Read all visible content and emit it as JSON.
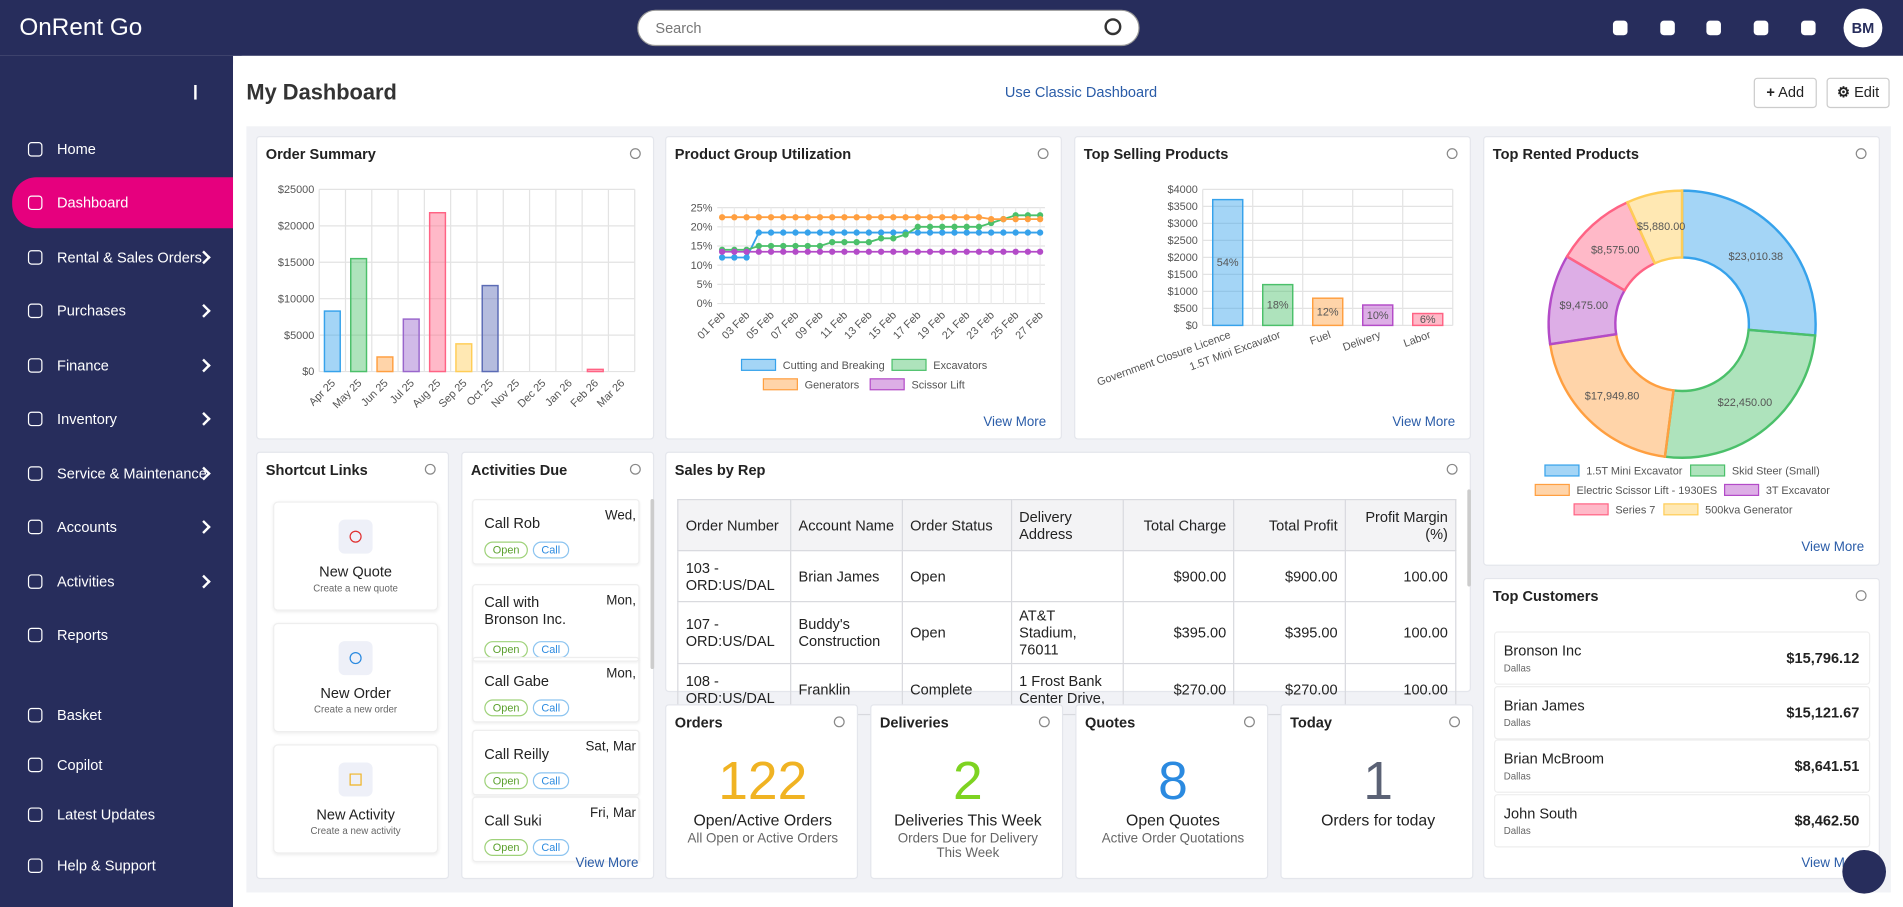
{
  "header": {
    "logo": "OnRent Go",
    "search_placeholder": "Search",
    "avatar": "BM"
  },
  "sidebar": {
    "items": [
      "Home",
      "Dashboard",
      "Rental & Sales Orders",
      "Purchases",
      "Finance",
      "Inventory",
      "Service & Maintenance",
      "Accounts",
      "Activities",
      "Reports",
      "Basket",
      "Copilot",
      "Latest Updates",
      "Help & Support"
    ],
    "active": 1,
    "expandable": [
      2,
      3,
      4,
      5,
      6,
      7,
      8
    ]
  },
  "page": {
    "title": "My Dashboard",
    "classic_link": "Use Classic Dashboard",
    "add_button": "Add",
    "edit_button": "Edit",
    "view_more": "View More"
  },
  "chart_data": [
    {
      "type": "bar",
      "title": "Order Summary",
      "categories": [
        "Apr 25",
        "May 25",
        "Jun 25",
        "Jul 25",
        "Aug 25",
        "Sep 25",
        "Oct 25",
        "Nov 25",
        "Dec 25",
        "Jan 26",
        "Feb 26",
        "Mar 26"
      ],
      "values": [
        8300,
        15500,
        2000,
        7200,
        21800,
        3800,
        11800,
        0,
        0,
        0,
        300,
        0
      ],
      "colors": [
        "#36a2eb",
        "#4bc06a",
        "#ff9f40",
        "#9966cc",
        "#ff6384",
        "#ffcd56",
        "#5b6bb5",
        "#36a2eb",
        "#4bc06a",
        "#ff9f40",
        "#ff6384",
        "#ffcd56"
      ],
      "ylim": [
        0,
        25000
      ],
      "yticks": [
        {
          "value": 0,
          "label": "$0"
        },
        {
          "value": 5000,
          "label": "$5000"
        },
        {
          "value": 10000,
          "label": "$10000"
        },
        {
          "value": 15000,
          "label": "$15000"
        },
        {
          "value": 20000,
          "label": "$20000"
        },
        {
          "value": 25000,
          "label": "$25000"
        }
      ],
      "grid": true
    },
    {
      "type": "line",
      "title": "Product Group Utilization",
      "categories": [
        "01 Feb",
        null,
        "03 Feb",
        null,
        "05 Feb",
        null,
        "07 Feb",
        null,
        "09 Feb",
        null,
        "11 Feb",
        null,
        "13 Feb",
        null,
        "15 Feb",
        null,
        "17 Feb",
        null,
        "19 Feb",
        null,
        "21 Feb",
        null,
        "23 Feb",
        null,
        "25 Feb",
        null,
        "27 Feb"
      ],
      "series": [
        {
          "name": "Cutting and Breaking",
          "color": "#36a2eb",
          "values": [
            12,
            12,
            12,
            18.5,
            18.5,
            18.5,
            18.5,
            18.5,
            18.5,
            18.5,
            18.5,
            18.5,
            18.5,
            18.5,
            18.5,
            18.5,
            18.5,
            18.5,
            18.5,
            18.5,
            18.5,
            18.5,
            18.5,
            18.5,
            18.5,
            18.5,
            18.5
          ]
        },
        {
          "name": "Excavators",
          "color": "#4bc06a",
          "values": [
            14,
            14,
            14,
            15,
            15,
            15,
            15,
            15,
            15,
            16,
            16,
            16,
            16,
            17,
            17,
            18,
            20,
            20,
            20,
            20,
            20,
            20,
            21,
            22,
            23,
            23,
            23
          ]
        },
        {
          "name": "Generators",
          "color": "#ff9f40",
          "values": [
            22.5,
            22.5,
            22.5,
            22.5,
            22.5,
            22.5,
            22.5,
            22.5,
            22.5,
            22.5,
            22.5,
            22.5,
            22.5,
            22.5,
            22.5,
            22.5,
            22.5,
            22.5,
            22.5,
            22.5,
            22.5,
            22.5,
            22,
            22,
            22,
            22,
            22
          ]
        },
        {
          "name": "Scissor Lift",
          "color": "#b34bc8",
          "values": [
            13.5,
            13.5,
            13.5,
            13.5,
            13.5,
            13.5,
            13.5,
            13.5,
            13.5,
            13.5,
            13.5,
            13.5,
            13.5,
            13.5,
            13.5,
            13.5,
            13.5,
            13.5,
            13.5,
            13.5,
            13.5,
            13.5,
            13.5,
            13.5,
            13.5,
            13.5,
            13.5
          ]
        }
      ],
      "ylim": [
        0,
        25
      ],
      "yticks": [
        {
          "value": 0,
          "label": "0%"
        },
        {
          "value": 5,
          "label": "5%"
        },
        {
          "value": 10,
          "label": "10%"
        },
        {
          "value": 15,
          "label": "15%"
        },
        {
          "value": 20,
          "label": "20%"
        },
        {
          "value": 25,
          "label": "25%"
        }
      ],
      "grid": true
    },
    {
      "type": "bar",
      "title": "Top Selling Products",
      "categories": [
        "Government Closure Licence",
        "1.5T Mini Excavator",
        "Fuel",
        "Delivery",
        "Labor"
      ],
      "values": [
        3700,
        1200,
        800,
        600,
        350
      ],
      "share_labels": [
        "54%",
        "18%",
        "12%",
        "10%",
        "6%"
      ],
      "colors": [
        "#36a2eb",
        "#4bc06a",
        "#ff9f40",
        "#b34bc8",
        "#ff6384"
      ],
      "ylim": [
        0,
        4000
      ],
      "yticks": [
        {
          "value": 0,
          "label": "$0"
        },
        {
          "value": 500,
          "label": "$500"
        },
        {
          "value": 1000,
          "label": "$1000"
        },
        {
          "value": 1500,
          "label": "$1500"
        },
        {
          "value": 2000,
          "label": "$2000"
        },
        {
          "value": 2500,
          "label": "$2500"
        },
        {
          "value": 3000,
          "label": "$3000"
        },
        {
          "value": 3500,
          "label": "$3500"
        },
        {
          "value": 4000,
          "label": "$4000"
        }
      ],
      "grid": true
    },
    {
      "type": "doughnut",
      "title": "Top Rented Products",
      "categories": [
        "1.5T Mini Excavator",
        "Skid Steer (Small)",
        "Electric Scissor Lift - 1930ES",
        "3T Excavator",
        "Series 7",
        "500kva Generator"
      ],
      "values": [
        23010.38,
        22450,
        17949.8,
        9475,
        8575,
        5880
      ],
      "value_labels": [
        "$23,010.38",
        "$22,450.00",
        "$17,949.80",
        "$9,475.00",
        "$8,575.00",
        "$5,880.00"
      ],
      "colors": [
        "#36a2eb",
        "#4bc06a",
        "#ff9f40",
        "#b34bc8",
        "#ff6384",
        "#ffcd56"
      ]
    }
  ],
  "shortcuts": {
    "title": "Shortcut Links",
    "items": [
      {
        "title": "New Quote",
        "subtitle": "Create a new quote"
      },
      {
        "title": "New Order",
        "subtitle": "Create a new order"
      },
      {
        "title": "New Activity",
        "subtitle": "Create a new activity"
      }
    ]
  },
  "activities": {
    "title": "Activities Due",
    "tags": [
      "Open",
      "Call"
    ],
    "items": [
      {
        "title": "Call Rob",
        "date": "Wed,"
      },
      {
        "title": "Call with Bronson Inc.",
        "date": "Mon,"
      },
      {
        "title": "Call Gabe",
        "date": "Mon,"
      },
      {
        "title": "Call Reilly",
        "date": "Sat, Mar"
      },
      {
        "title": "Call Suki",
        "date": "Fri, Mar"
      }
    ]
  },
  "sales_by_rep": {
    "title": "Sales by Rep",
    "columns": [
      "Order Number",
      "Account Name",
      "Order Status",
      "Delivery Address",
      "Total Charge",
      "Total Profit",
      "Profit Margin (%)"
    ],
    "rows": [
      [
        "103 - ORD:US/DAL",
        "Brian James",
        "Open",
        null,
        "$900.00",
        "$900.00",
        "100.00"
      ],
      [
        "107 - ORD:US/DAL",
        "Buddy's Construction",
        "Open",
        "AT&T Stadium, 76011",
        "$395.00",
        "$395.00",
        "100.00"
      ],
      [
        "108 - ORD:US/DAL",
        "Franklin",
        "Complete",
        "1 Frost Bank Center Drive,",
        "$270.00",
        "$270.00",
        "100.00"
      ]
    ]
  },
  "stats": [
    {
      "title": "Orders",
      "number": "122",
      "label": "Open/Active Orders",
      "subtitle": "All Open or Active Orders"
    },
    {
      "title": "Deliveries",
      "number": "2",
      "label": "Deliveries This Week",
      "subtitle": "Orders Due for Delivery This Week"
    },
    {
      "title": "Quotes",
      "number": "8",
      "label": "Open Quotes",
      "subtitle": "Active Order Quotations"
    },
    {
      "title": "Today",
      "number": "1",
      "label": "Orders for today"
    }
  ],
  "top_customers": {
    "title": "Top Customers",
    "rows": [
      {
        "name": "Bronson Inc",
        "city": "Dallas",
        "amount": "$15,796.12"
      },
      {
        "name": "Brian James",
        "city": "Dallas",
        "amount": "$15,121.67"
      },
      {
        "name": "Brian McBroom",
        "city": "Dallas",
        "amount": "$8,641.51"
      },
      {
        "name": "John South",
        "city": "Dallas",
        "amount": "$8,462.50"
      }
    ]
  }
}
